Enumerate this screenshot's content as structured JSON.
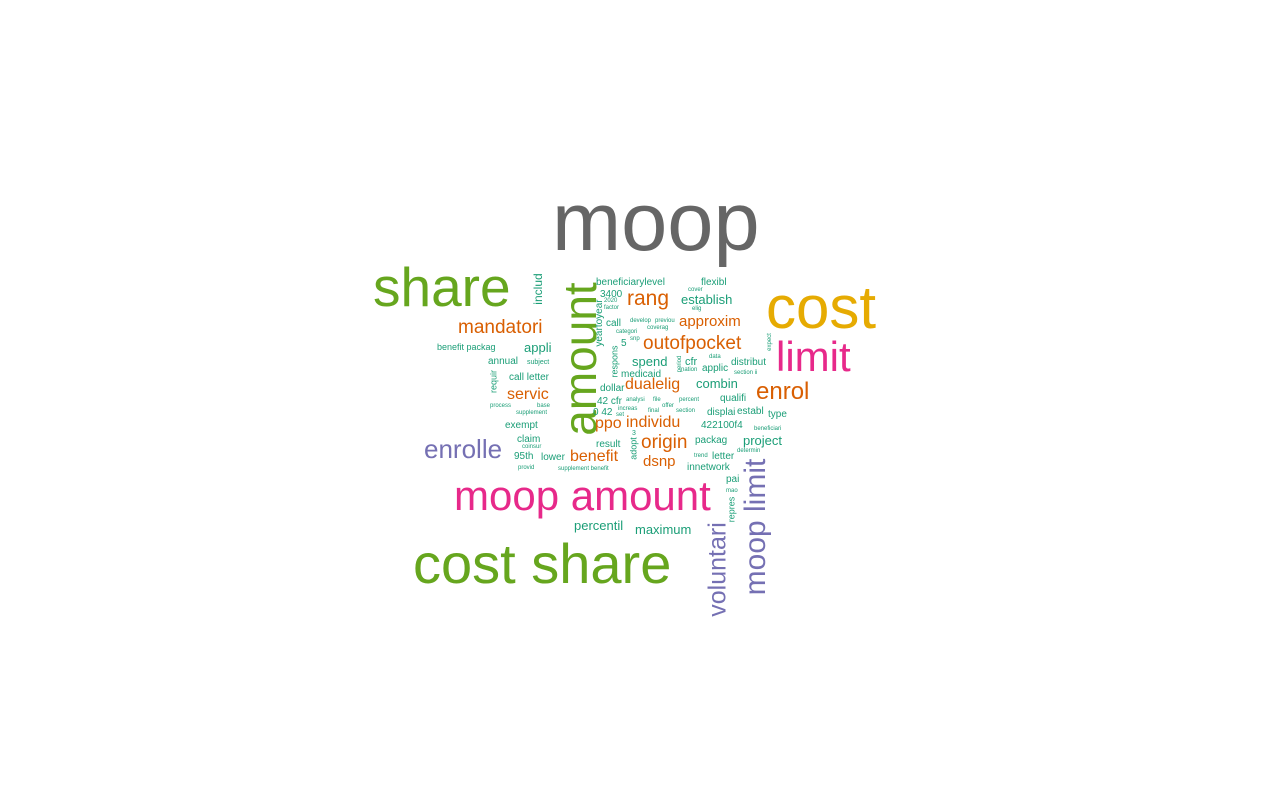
{
  "colors": {
    "gray": "#666666",
    "green": "#66a61e",
    "gold": "#e6ab02",
    "pink": "#e7298a",
    "purple": "#7570b3",
    "orange": "#d95f02",
    "teal": "#1b9e77"
  },
  "words": {
    "moop": "moop",
    "share": "share",
    "cost": "cost",
    "limit": "limit",
    "amount": "amount",
    "moop_amount": "moop amount",
    "cost_share": "cost share",
    "moop_limit": "moop limit",
    "voluntari": "voluntari",
    "enrolle": "enrolle",
    "enrol": "enrol",
    "mandatori": "mandatori",
    "rang": "rang",
    "outofpocket": "outofpocket",
    "approxim": "approxim",
    "dualelig": "dualelig",
    "individu": "individu",
    "origin": "origin",
    "servic": "servic",
    "benefit": "benefit",
    "dsnp": "dsnp",
    "ppo": "ppo",
    "includ": "includ",
    "appli": "appli",
    "beneficiarylevel": "beneficiarylevel",
    "flexibl": "flexibl",
    "establish": "establish",
    "n3400": "3400",
    "yeartoyear": "yeartoyear",
    "call": "call",
    "spend": "spend",
    "cfr": "cfr",
    "medicaid": "medicaid",
    "combin": "combin",
    "applic": "applic",
    "distribut": "distribut",
    "benefit_packag": "benefit packag",
    "annual": "annual",
    "call_letter": "call letter",
    "dollar": "dollar",
    "qualifi": "qualifi",
    "cfr42": "42 cfr",
    "displai": "displai",
    "establ": "establ",
    "type": "type",
    "n422100f4": "422100f4",
    "exempt": "exempt",
    "claim": "claim",
    "n95th": "95th",
    "lower": "lower",
    "result": "result",
    "packag": "packag",
    "project": "project",
    "letter": "letter",
    "innetwork": "innetwork",
    "pai": "pai",
    "percentil": "percentil",
    "maximum": "maximum",
    "respons": "respons",
    "requir": "requir",
    "adopt": "adopt",
    "repres": "repres",
    "n0_42": "0  42",
    "n5": "5",
    "cover": "cover",
    "elig": "elig",
    "factor": "factor",
    "develop": "develop",
    "previou": "previou",
    "categori": "categori",
    "coverag": "coverag",
    "snp": "snp",
    "subject": "subject",
    "period": "period",
    "data": "data",
    "nation": "nation",
    "section_ii": "section ii",
    "expect": "expect",
    "analysi": "analysi",
    "file": "file",
    "percent": "percent",
    "process": "process",
    "base": "base",
    "supplement": "supplement",
    "increas": "increas",
    "set": "set",
    "final": "final",
    "offer": "offer",
    "section": "section",
    "beneficiari": "beneficiari",
    "coinsur": "coinsur",
    "trend": "trend",
    "determin": "determin",
    "mao": "mao",
    "provid": "provid",
    "supplement_benefit": "supplement benefit",
    "n2020": "2020",
    "n3": "3"
  }
}
